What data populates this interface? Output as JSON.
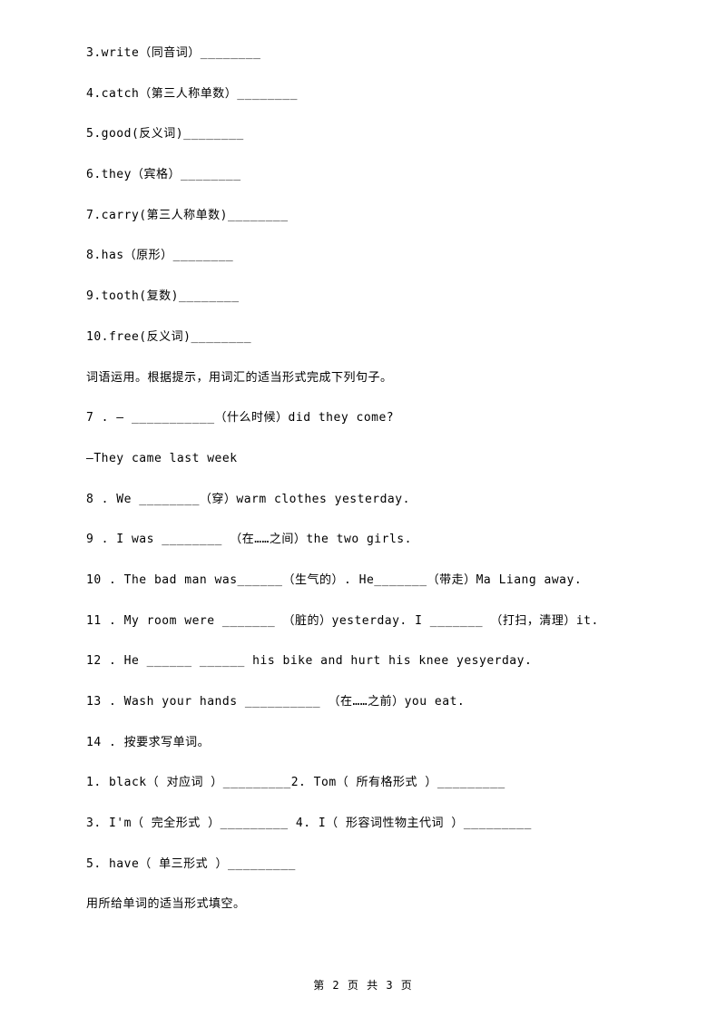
{
  "lines": [
    "3.write（同音词）________",
    "4.catch（第三人称单数）________",
    "5.good(反义词)________",
    "6.they（宾格）________",
    "7.carry(第三人称单数)________",
    "8.has（原形）________",
    "9.tooth(复数)________",
    "10.free(反义词)________",
    "词语运用。根据提示，用词汇的适当形式完成下列句子。",
    "7 . — ___________（什么时候）did they come?",
    "—They came last week",
    "8 . We ________（穿）warm clothes yesterday.",
    "9 . I was ________ （在……之间）the two girls.",
    "10 . The bad man was______（生气的）. He_______（带走）Ma Liang away.",
    "11 . My room were _______ （脏的）yesterday. I _______ （打扫，清理）it.",
    "12 . He ______ ______ his bike and hurt his knee yesyerday.",
    "13 . Wash your hands __________ （在……之前）you eat.",
    "14 . 按要求写单词。",
    "1. black（ 对应词 ）_________2. Tom（ 所有格形式 ）_________",
    "3. I'm（ 完全形式 ）_________   4. I（ 形容词性物主代词 ）_________",
    "5. have（ 单三形式 ）_________",
    "用所给单词的适当形式填空。"
  ],
  "footer": "第 2 页 共 3 页"
}
